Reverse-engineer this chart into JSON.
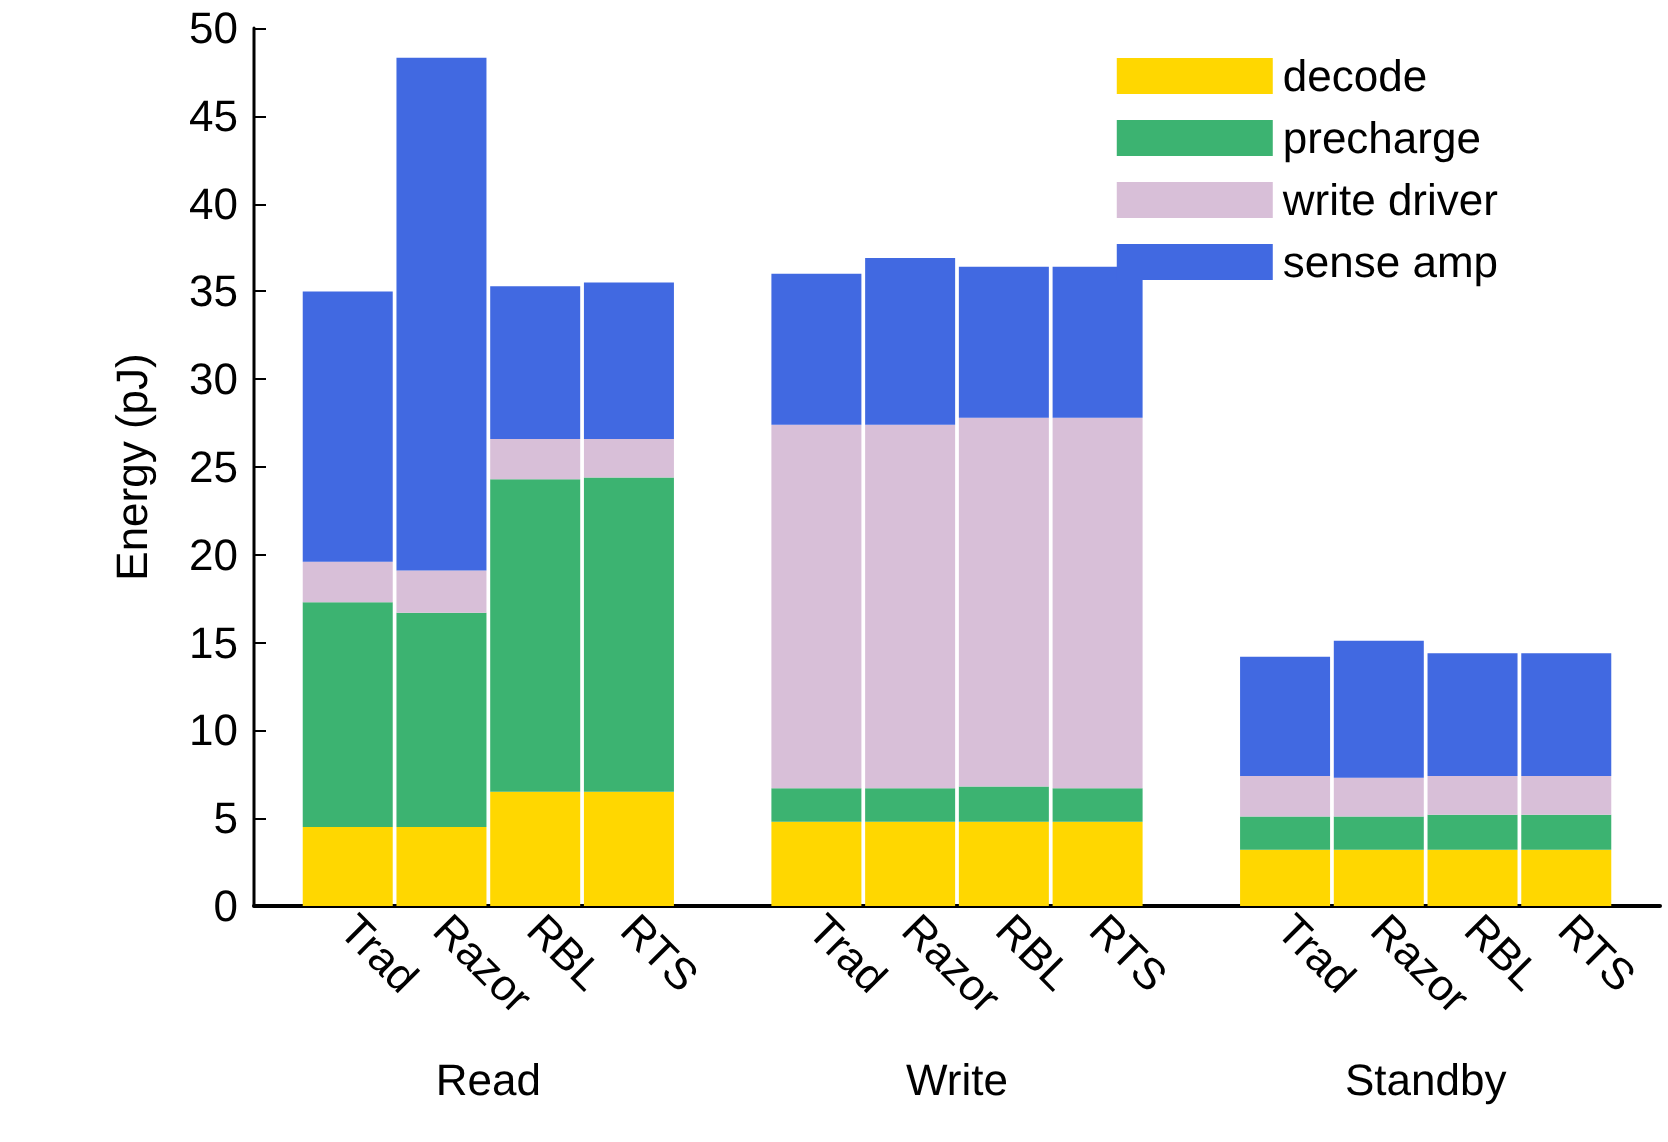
{
  "chart_data": {
    "type": "bar",
    "stacked": true,
    "ylabel": "Energy (pJ)",
    "categories": [
      null,
      "Trad",
      "Razor",
      "RBL",
      "RTS",
      null,
      "Trad",
      "Razor",
      "RBL",
      "RTS",
      null,
      "Trad",
      "Razor",
      "RBL",
      "RTS",
      null
    ],
    "series": [
      {
        "name": "decode",
        "color": "#ffd700",
        "values": [
          null,
          4.5,
          4.5,
          6.5,
          6.5,
          null,
          4.8,
          4.8,
          4.8,
          4.8,
          null,
          3.2,
          3.2,
          3.2,
          3.2,
          null
        ]
      },
      {
        "name": "precharge",
        "color": "#3cb371",
        "values": [
          null,
          12.8,
          12.2,
          17.8,
          17.9,
          null,
          1.9,
          1.9,
          2.0,
          1.9,
          null,
          1.9,
          1.9,
          2.0,
          2.0,
          null
        ]
      },
      {
        "name": "write driver",
        "color": "#d8bfd8",
        "values": [
          null,
          2.3,
          2.4,
          2.3,
          2.2,
          null,
          20.7,
          20.7,
          21.0,
          21.1,
          null,
          2.3,
          2.2,
          2.2,
          2.2,
          null
        ]
      },
      {
        "name": "sense amp",
        "color": "#4169e1",
        "values": [
          null,
          15.4,
          29.2,
          8.7,
          8.9,
          null,
          8.6,
          9.5,
          8.6,
          8.6,
          null,
          6.8,
          7.8,
          7.0,
          7.0,
          null
        ]
      }
    ],
    "annotations": [
      "Read",
      "Write",
      "Standby"
    ],
    "ylim": [
      0,
      50
    ],
    "yticks": [
      0,
      5,
      10,
      15,
      20,
      25,
      30,
      35,
      40,
      45,
      50
    ],
    "grid": false,
    "legend": "top right"
  }
}
